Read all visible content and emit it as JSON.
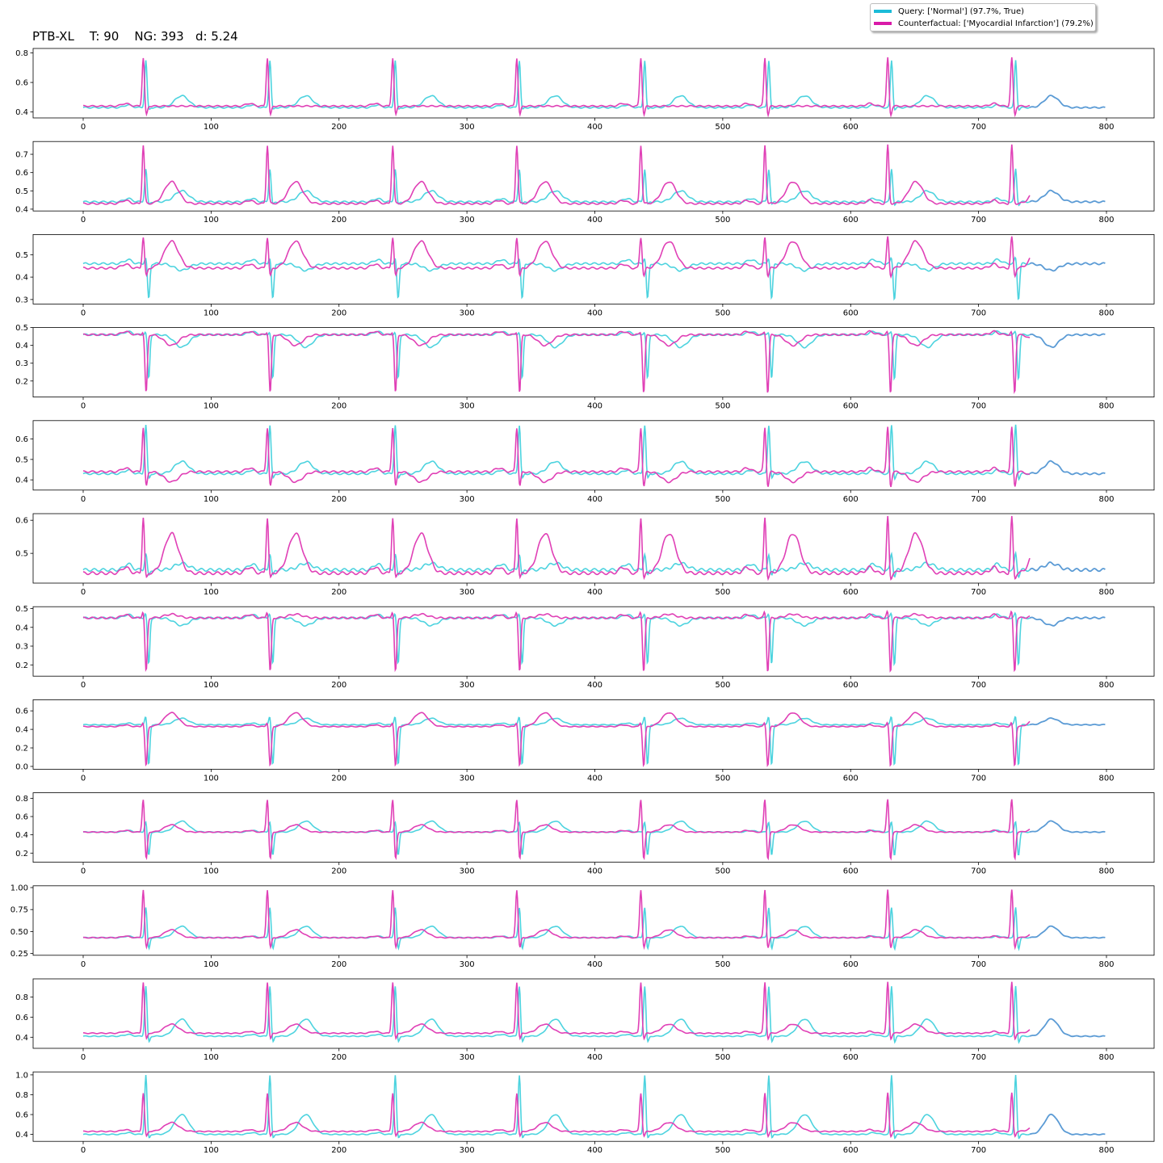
{
  "page": {
    "title": "PTB-XL    T: 90    NG: 393   d: 5.24"
  },
  "legend": {
    "items": [
      {
        "label": "Query: ['Normal'] (97.7%, True)",
        "color": "#1cbcd8"
      },
      {
        "label": "Counterfactual: ['Myocardial Infarction'] (79.2%)",
        "color": "#d91aa8"
      }
    ]
  },
  "colors": {
    "query": "#4dd3df",
    "counterfactual": "#e040b6",
    "overlap": "#5b9bd5",
    "axis": "#000000"
  },
  "chart_data": {
    "type": "line",
    "rows": 12,
    "x_range": [
      0,
      799
    ],
    "x_ticks": [
      0,
      100,
      200,
      300,
      400,
      500,
      600,
      700,
      800
    ],
    "beats": [
      49,
      146,
      244,
      341,
      438,
      535,
      631,
      728
    ],
    "overlap_from": 740,
    "leads": [
      {
        "yticks": [
          0.4,
          0.6,
          0.8
        ],
        "ylim": [
          0.36,
          0.83
        ],
        "base_q": 0.43,
        "base_c": 0.44,
        "q": {
          "r": 0.75,
          "s": 0.41,
          "t": 0.51,
          "twave_offset": 28
        },
        "c": {
          "r": 0.77,
          "s": 0.37,
          "t": 0.44,
          "twave_offset": 22
        }
      },
      {
        "yticks": [
          0.4,
          0.5,
          0.6,
          0.7
        ],
        "ylim": [
          0.39,
          0.77
        ],
        "base_q": 0.44,
        "base_c": 0.43,
        "q": {
          "r": 0.62,
          "s": 0.42,
          "t": 0.5,
          "twave_offset": 28
        },
        "c": {
          "r": 0.75,
          "s": 0.43,
          "t": 0.55,
          "twave_offset": 22
        }
      },
      {
        "yticks": [
          0.3,
          0.4,
          0.5
        ],
        "ylim": [
          0.28,
          0.59
        ],
        "base_q": 0.46,
        "base_c": 0.44,
        "q": {
          "r": 0.49,
          "s": 0.3,
          "t": 0.43,
          "twave_offset": 28
        },
        "c": {
          "r": 0.58,
          "s": 0.4,
          "t": 0.56,
          "twave_offset": 22
        }
      },
      {
        "yticks": [
          0.2,
          0.3,
          0.4,
          0.5
        ],
        "ylim": [
          0.11,
          0.5
        ],
        "base_q": 0.46,
        "base_c": 0.46,
        "q": {
          "r": 0.48,
          "s": 0.21,
          "t": 0.39,
          "twave_offset": 28
        },
        "c": {
          "r": 0.48,
          "s": 0.13,
          "t": 0.4,
          "twave_offset": 22
        }
      },
      {
        "yticks": [
          0.4,
          0.5,
          0.6
        ],
        "ylim": [
          0.35,
          0.69
        ],
        "base_q": 0.43,
        "base_c": 0.44,
        "q": {
          "r": 0.67,
          "s": 0.4,
          "t": 0.49,
          "twave_offset": 28
        },
        "c": {
          "r": 0.66,
          "s": 0.36,
          "t": 0.39,
          "twave_offset": 22
        }
      },
      {
        "yticks": [
          0.5,
          0.6
        ],
        "ylim": [
          0.41,
          0.62
        ],
        "base_q": 0.45,
        "base_c": 0.44,
        "q": {
          "r": 0.5,
          "s": 0.43,
          "t": 0.47,
          "twave_offset": 28
        },
        "c": {
          "r": 0.61,
          "s": 0.42,
          "t": 0.56,
          "twave_offset": 22
        }
      },
      {
        "yticks": [
          0.2,
          0.3,
          0.4,
          0.5
        ],
        "ylim": [
          0.14,
          0.51
        ],
        "base_q": 0.45,
        "base_c": 0.45,
        "q": {
          "r": 0.48,
          "s": 0.2,
          "t": 0.41,
          "twave_offset": 28
        },
        "c": {
          "r": 0.49,
          "s": 0.16,
          "t": 0.47,
          "twave_offset": 22
        }
      },
      {
        "yticks": [
          0.0,
          0.2,
          0.4,
          0.6
        ],
        "ylim": [
          -0.03,
          0.72
        ],
        "base_q": 0.45,
        "base_c": 0.43,
        "q": {
          "r": 0.55,
          "s": 0.01,
          "t": 0.52,
          "twave_offset": 28
        },
        "c": {
          "r": 0.48,
          "s": 0.0,
          "t": 0.58,
          "twave_offset": 22
        }
      },
      {
        "yticks": [
          0.2,
          0.4,
          0.6,
          0.8
        ],
        "ylim": [
          0.1,
          0.86
        ],
        "base_q": 0.43,
        "base_c": 0.43,
        "q": {
          "r": 0.55,
          "s": 0.17,
          "t": 0.55,
          "twave_offset": 28
        },
        "c": {
          "r": 0.8,
          "s": 0.12,
          "t": 0.51,
          "twave_offset": 22
        }
      },
      {
        "yticks": [
          0.25,
          0.5,
          0.75,
          1.0
        ],
        "ylim": [
          0.23,
          1.02
        ],
        "base_q": 0.43,
        "base_c": 0.43,
        "q": {
          "r": 0.78,
          "s": 0.29,
          "t": 0.56,
          "twave_offset": 28
        },
        "c": {
          "r": 0.98,
          "s": 0.3,
          "t": 0.52,
          "twave_offset": 22
        }
      },
      {
        "yticks": [
          0.4,
          0.6,
          0.8
        ],
        "ylim": [
          0.29,
          0.98
        ],
        "base_q": 0.41,
        "base_c": 0.44,
        "q": {
          "r": 0.91,
          "s": 0.34,
          "t": 0.58,
          "twave_offset": 28
        },
        "c": {
          "r": 0.95,
          "s": 0.37,
          "t": 0.53,
          "twave_offset": 22
        }
      },
      {
        "yticks": [
          0.4,
          0.6,
          0.8,
          1.0
        ],
        "ylim": [
          0.33,
          1.03
        ],
        "base_q": 0.4,
        "base_c": 0.43,
        "q": {
          "r": 1.0,
          "s": 0.35,
          "t": 0.6,
          "twave_offset": 28
        },
        "c": {
          "r": 0.82,
          "s": 0.37,
          "t": 0.52,
          "twave_offset": 22
        }
      }
    ]
  }
}
